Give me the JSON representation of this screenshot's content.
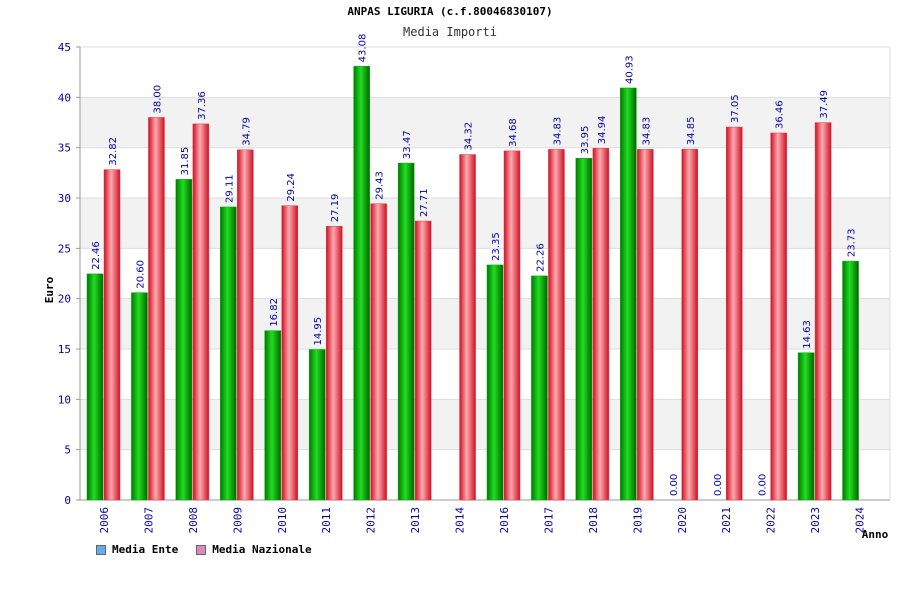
{
  "chart_data": {
    "type": "bar",
    "title": "ANPAS LIGURIA (c.f.80046830107)",
    "subtitle": "Media Importi",
    "xlabel": "Anno",
    "ylabel": "Euro",
    "ylim": [
      0,
      45
    ],
    "yticks": [
      0,
      5,
      10,
      15,
      20,
      25,
      30,
      35,
      40,
      45
    ],
    "grid": true,
    "legend_position": "bottom-left",
    "categories": [
      "2006",
      "2007",
      "2008",
      "2009",
      "2010",
      "2011",
      "2012",
      "2013",
      "2014",
      "2016",
      "2017",
      "2018",
      "2019",
      "2020",
      "2021",
      "2022",
      "2023",
      "2024"
    ],
    "series": [
      {
        "name": "Media Ente",
        "color": "#00aa00",
        "legend_color": "#66aaee",
        "values": [
          22.46,
          20.6,
          31.85,
          29.11,
          16.82,
          14.95,
          43.08,
          33.47,
          null,
          23.35,
          22.26,
          33.95,
          40.93,
          0.0,
          0.0,
          0.0,
          14.63,
          23.73
        ],
        "labels": [
          "22.46",
          "20.60",
          "31.85",
          "29.11",
          "16.82",
          "14.95",
          "43.08",
          "33.47",
          "",
          "23.35",
          "22.26",
          "33.95",
          "40.93",
          "0.00",
          "0.00",
          "0.00",
          "14.63",
          "23.73"
        ]
      },
      {
        "name": "Media Nazionale",
        "color": "#ee3344",
        "legend_color": "#dd88bb",
        "values": [
          32.82,
          38.0,
          37.36,
          34.79,
          29.24,
          27.19,
          29.43,
          27.71,
          34.32,
          34.68,
          34.83,
          34.94,
          34.83,
          34.85,
          37.05,
          36.46,
          37.49,
          null
        ],
        "labels": [
          "32.82",
          "38.00",
          "37.36",
          "34.79",
          "29.24",
          "27.19",
          "29.43",
          "27.71",
          "34.32",
          "34.68",
          "34.83",
          "34.94",
          "34.83",
          "34.85",
          "37.05",
          "36.46",
          "37.49",
          ""
        ]
      }
    ]
  }
}
